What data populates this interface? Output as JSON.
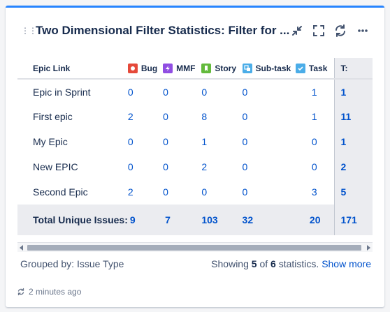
{
  "gadget": {
    "title": "Two Dimensional Filter Statistics: Filter for ..."
  },
  "header_icons": [
    "minimize-icon",
    "fullscreen-icon",
    "refresh-icon",
    "more-icon"
  ],
  "table": {
    "row_header": "Epic Link",
    "columns": [
      {
        "label": "Bug",
        "icon": "bug-icon",
        "color": "#e5493a"
      },
      {
        "label": "MMF",
        "icon": "mmf-icon",
        "color": "#904ee2"
      },
      {
        "label": "Story",
        "icon": "story-icon",
        "color": "#63ba3c"
      },
      {
        "label": "Sub-task",
        "icon": "subtask-icon",
        "color": "#4bade8"
      },
      {
        "label": "Task",
        "icon": "task-icon",
        "color": "#4bade8"
      }
    ],
    "total_header": "T:",
    "rows": [
      {
        "name": "Epic in Sprint",
        "values": [
          "0",
          "0",
          "0",
          "0",
          "1"
        ],
        "total": "1"
      },
      {
        "name": "First epic",
        "values": [
          "2",
          "0",
          "8",
          "0",
          "1"
        ],
        "total": "11"
      },
      {
        "name": "My Epic",
        "values": [
          "0",
          "0",
          "1",
          "0",
          "0"
        ],
        "total": "1"
      },
      {
        "name": "New EPIC",
        "values": [
          "0",
          "0",
          "2",
          "0",
          "0"
        ],
        "total": "2"
      },
      {
        "name": "Second Epic",
        "values": [
          "2",
          "0",
          "0",
          "0",
          "3"
        ],
        "total": "5"
      }
    ],
    "totals_row": {
      "label": "Total Unique Issues:",
      "values": [
        "9",
        "7",
        "103",
        "32",
        "20"
      ],
      "total": "171"
    }
  },
  "footer": {
    "grouped_by": "Grouped by: Issue Type",
    "showing_prefix": "Showing ",
    "showing_count": "5",
    "showing_of": " of ",
    "showing_total": "6",
    "showing_suffix": " statistics. ",
    "show_more": "Show more"
  },
  "updated": "2 minutes ago"
}
